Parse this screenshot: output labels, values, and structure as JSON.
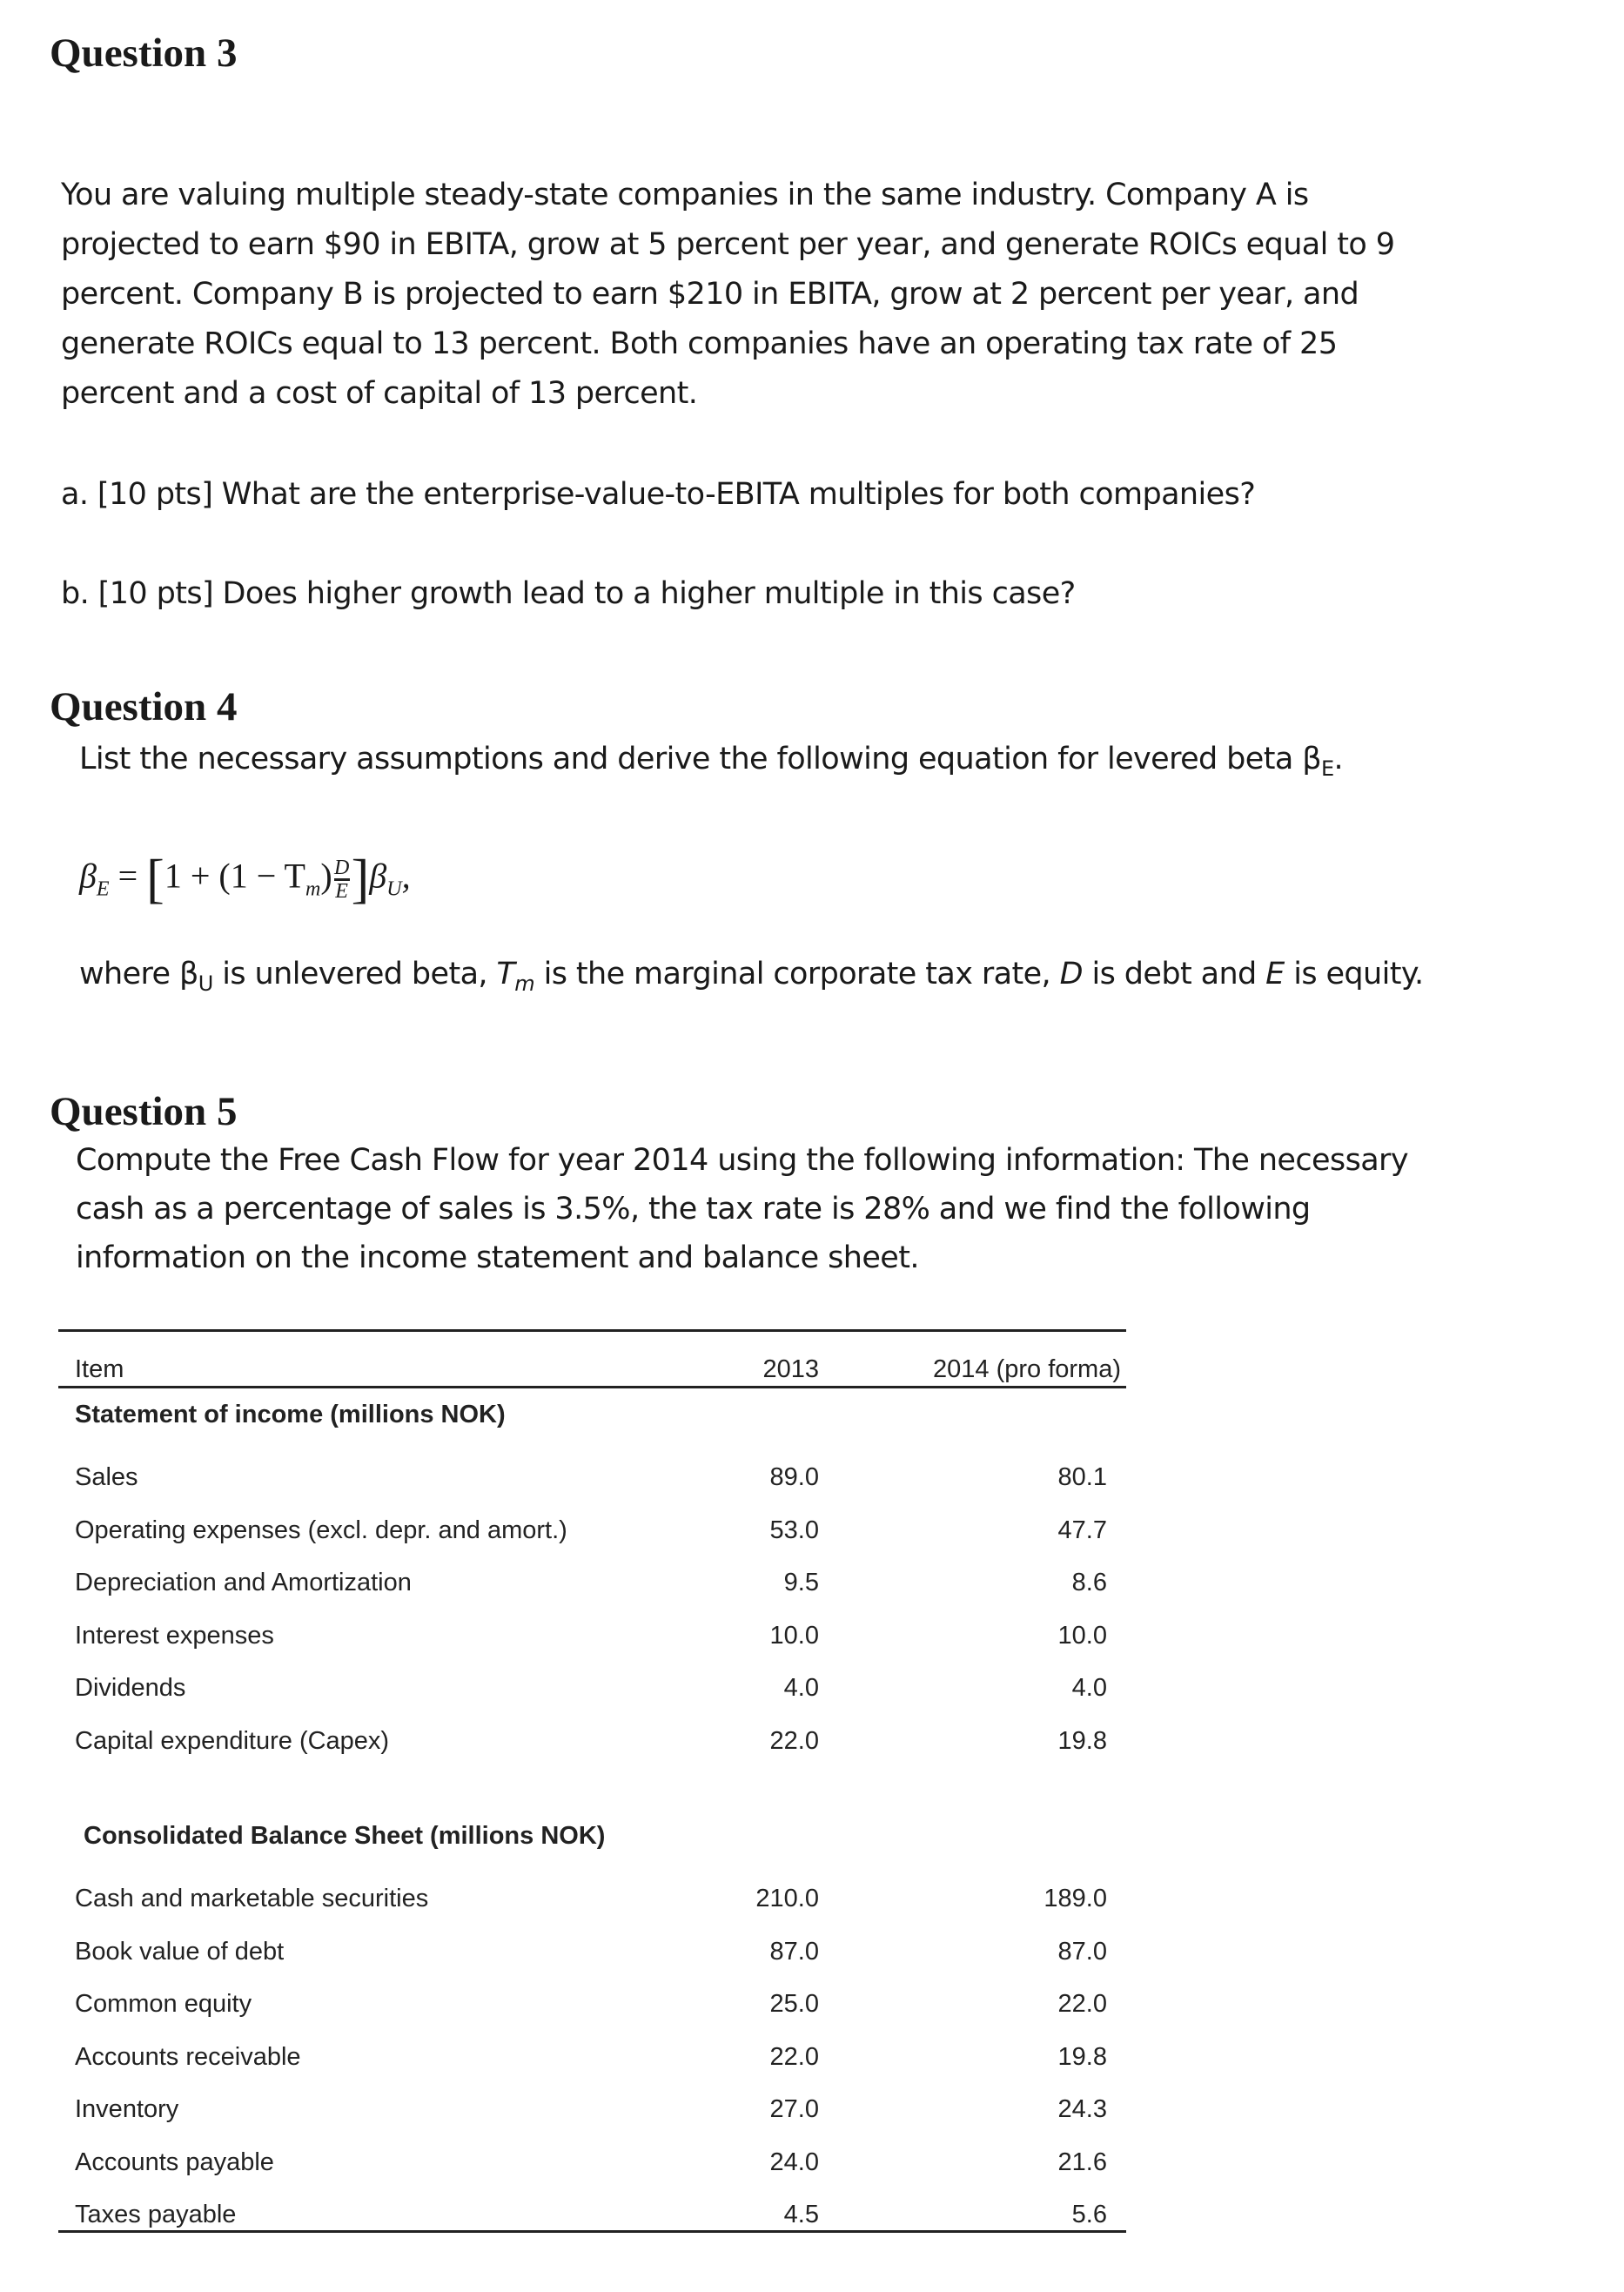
{
  "q3": {
    "heading": "Question 3",
    "lines": [
      "You are valuing multiple steady-state companies in the same industry. Company A is",
      "projected to earn $90 in EBITA, grow at 5 percent per year, and generate ROICs equal to 9",
      "percent. Company B is projected to earn $210 in EBITA, grow at 2 percent per year, and",
      "generate ROICs equal to 13 percent. Both companies have an operating tax rate of 25",
      "percent and a cost of capital of 13 percent."
    ],
    "a": "a.  [10 pts] What are the enterprise-value-to-EBITA multiples for both companies?",
    "b": "b.  [10 pts] Does higher growth lead to a higher multiple in this case?"
  },
  "q4": {
    "heading": "Question 4",
    "intro": "List the necessary assumptions and derive the following equation for levered beta β",
    "intro_sub": "E",
    "intro_end": ".",
    "formula": {
      "lhs": "β",
      "lhs_sub": "E",
      "eq": " = ",
      "open": "[",
      "body": "1 + (1 − T",
      "tm_sub": "m",
      "close_paren": ")",
      "num": "D",
      "den": "E",
      "close": "]",
      "rhs": "β",
      "rhs_sub": "U",
      "end": ","
    },
    "where": {
      "p1": "where  β",
      "s1": "U",
      "p2": " is unlevered beta, ",
      "t": "T",
      "s2": "m",
      "p3": " is the marginal corporate tax rate, ",
      "d": "D",
      "p4": " is debt and ",
      "e": "E",
      "p5": " is equity."
    }
  },
  "q5": {
    "heading": "Question 5",
    "lines": [
      "Compute the Free Cash Flow for year 2014 using the following information: The necessary",
      "cash as a percentage of sales is 3.5%, the tax rate is 28% and we find the following",
      "information on the income statement and balance sheet."
    ]
  },
  "table": {
    "headers": [
      "Item",
      "2013",
      "2014 (pro forma)"
    ],
    "income_title": "Statement of income (millions NOK)",
    "income_rows": [
      [
        "Sales",
        "89.0",
        "80.1"
      ],
      [
        "Operating expenses (excl. depr. and amort.)",
        "53.0",
        "47.7"
      ],
      [
        "Depreciation and Amortization",
        "9.5",
        "8.6"
      ],
      [
        "Interest expenses",
        "10.0",
        "10.0"
      ],
      [
        "Dividends",
        "4.0",
        "4.0"
      ],
      [
        "Capital expenditure (Capex)",
        "22.0",
        "19.8"
      ]
    ],
    "balance_title": "Consolidated Balance Sheet (millions NOK)",
    "balance_rows": [
      [
        "Cash and marketable securities",
        "210.0",
        "189.0"
      ],
      [
        "Book value of debt",
        "87.0",
        "87.0"
      ],
      [
        "Common equity",
        "25.0",
        "22.0"
      ],
      [
        "Accounts receivable",
        "22.0",
        "19.8"
      ],
      [
        "Inventory",
        "27.0",
        "24.3"
      ],
      [
        "Accounts payable",
        "24.0",
        "21.6"
      ],
      [
        "Taxes payable",
        "4.5",
        "5.6"
      ]
    ]
  }
}
